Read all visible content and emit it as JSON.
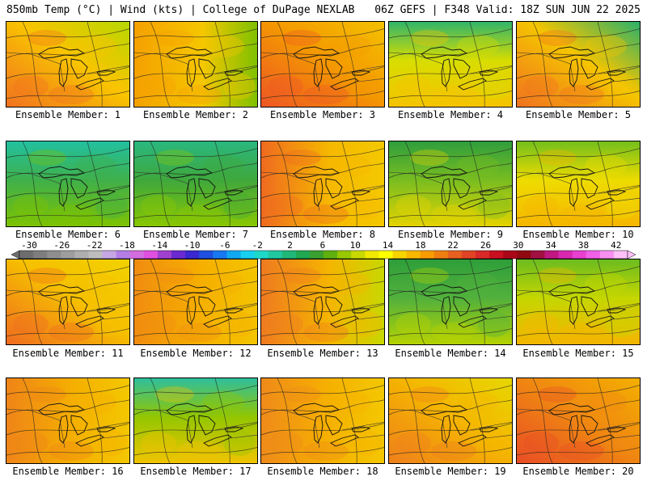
{
  "header": {
    "left": "850mb Temp (°C) | Wind (kts) | College of DuPage NEXLAB",
    "right": "06Z GEFS | F348 Valid: 18Z SUN JUN 22 2025"
  },
  "caption_prefix": "Ensemble Member:",
  "members": [
    {
      "label": "Ensemble Member: 1",
      "base": "#f9c400",
      "warm": "#f07020",
      "cool": "#b7d800",
      "warm_side": "sw"
    },
    {
      "label": "Ensemble Member: 2",
      "base": "#f5c700",
      "warm": "#f5a000",
      "cool": "#7cc000",
      "warm_side": "w"
    },
    {
      "label": "Ensemble Member: 3",
      "base": "#f49a00",
      "warm": "#ee5525",
      "cool": "#f4c200",
      "warm_side": "sw"
    },
    {
      "label": "Ensemble Member: 4",
      "base": "#d8dd00",
      "warm": "#f6c300",
      "cool": "#31b56a",
      "warm_side": "s"
    },
    {
      "label": "Ensemble Member: 5",
      "base": "#f5c500",
      "warm": "#f07020",
      "cool": "#28b06c",
      "warm_side": "sw"
    },
    {
      "label": "Ensemble Member: 6",
      "base": "#3fb04a",
      "warm": "#7fc300",
      "cool": "#22c0a0",
      "warm_side": "s"
    },
    {
      "label": "Ensemble Member: 7",
      "base": "#3fa83c",
      "warm": "#8cc800",
      "cool": "#2ab77f",
      "warm_side": "s"
    },
    {
      "label": "Ensemble Member: 8",
      "base": "#f6b800",
      "warm": "#ef6a20",
      "cool": "#f4c900",
      "warm_side": "w"
    },
    {
      "label": "Ensemble Member: 9",
      "base": "#79bd20",
      "warm": "#e8d400",
      "cool": "#2f9e3d",
      "warm_side": "s"
    },
    {
      "label": "Ensemble Member: 10",
      "base": "#eedc00",
      "warm": "#f6b400",
      "cool": "#74bf1c",
      "warm_side": "s"
    },
    {
      "label": "Ensemble Member: 11",
      "base": "#f6c000",
      "warm": "#ef6a20",
      "cool": "#f2d200",
      "warm_side": "sw"
    },
    {
      "label": "Ensemble Member: 12",
      "base": "#f6b000",
      "warm": "#f08c10",
      "cool": "#f4c500",
      "warm_side": "w"
    },
    {
      "label": "Ensemble Member: 13",
      "base": "#f5b500",
      "warm": "#ef7a20",
      "cool": "#c7d800",
      "warm_side": "w"
    },
    {
      "label": "Ensemble Member: 14",
      "base": "#52b13c",
      "warm": "#b9d300",
      "cool": "#2e9e3a",
      "warm_side": "s"
    },
    {
      "label": "Ensemble Member: 15",
      "base": "#c5d600",
      "warm": "#f6b400",
      "cool": "#6cbc20",
      "warm_side": "s"
    },
    {
      "label": "Ensemble Member: 16",
      "base": "#f5b000",
      "warm": "#ef8418",
      "cool": "#f3c800",
      "warm_side": "w"
    },
    {
      "label": "Ensemble Member: 17",
      "base": "#93c600",
      "warm": "#f4c400",
      "cool": "#2ebf9c",
      "warm_side": "s"
    },
    {
      "label": "Ensemble Member: 18",
      "base": "#f6b100",
      "warm": "#ef8a1a",
      "cool": "#f3c800",
      "warm_side": "w"
    },
    {
      "label": "Ensemble Member: 19",
      "base": "#f5b600",
      "warm": "#ef7e1c",
      "cool": "#e6d800",
      "warm_side": "sw"
    },
    {
      "label": "Ensemble Member: 20",
      "base": "#f08a10",
      "warm": "#e84c26",
      "cool": "#f4b000",
      "warm_side": "sw"
    }
  ],
  "colorbar": {
    "labels": [
      "-30",
      "-26",
      "-22",
      "-18",
      "-14",
      "-10",
      "-6",
      "-2",
      "2",
      "6",
      "10",
      "14",
      "18",
      "22",
      "26",
      "30",
      "34",
      "38",
      "42"
    ],
    "colors": [
      "#6e6e6e",
      "#7e7e7e",
      "#8e8e8e",
      "#9e9e9e",
      "#aeaeae",
      "#bdbdbd",
      "#c7a6e6",
      "#b57ee6",
      "#d36de0",
      "#e050e0",
      "#a040d0",
      "#6a2ad0",
      "#3a28d0",
      "#2050e0",
      "#1878f0",
      "#10a8f0",
      "#18d0f0",
      "#20d8c8",
      "#20c8a0",
      "#20b878",
      "#20a850",
      "#3aa030",
      "#60b010",
      "#98c800",
      "#c8d800",
      "#f0e800",
      "#ffff00",
      "#f8d400",
      "#f8b800",
      "#f89c00",
      "#f07e10",
      "#e86020",
      "#e04424",
      "#d82828",
      "#c81020",
      "#a80818",
      "#900810",
      "#a01040",
      "#c01880",
      "#d828b0",
      "#e840d0",
      "#f060e8",
      "#f890f0",
      "#ffc0f8"
    ]
  }
}
